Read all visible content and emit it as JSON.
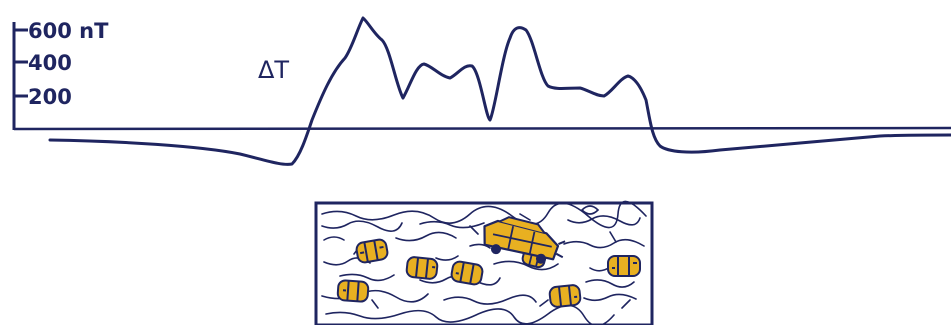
{
  "axis": {
    "ticks": [
      {
        "value": 600,
        "label": "600 nT"
      },
      {
        "value": 400,
        "label": "400"
      },
      {
        "value": 200,
        "label": "200"
      }
    ]
  },
  "curve_label": "ΔT",
  "colors": {
    "ink": "#1f2560",
    "drum_fill": "#e8b021",
    "background": "#ffffff"
  },
  "buried_objects": [
    "drum",
    "drum",
    "drum",
    "drum",
    "drum",
    "drum",
    "drum",
    "vehicle-wreck"
  ]
}
